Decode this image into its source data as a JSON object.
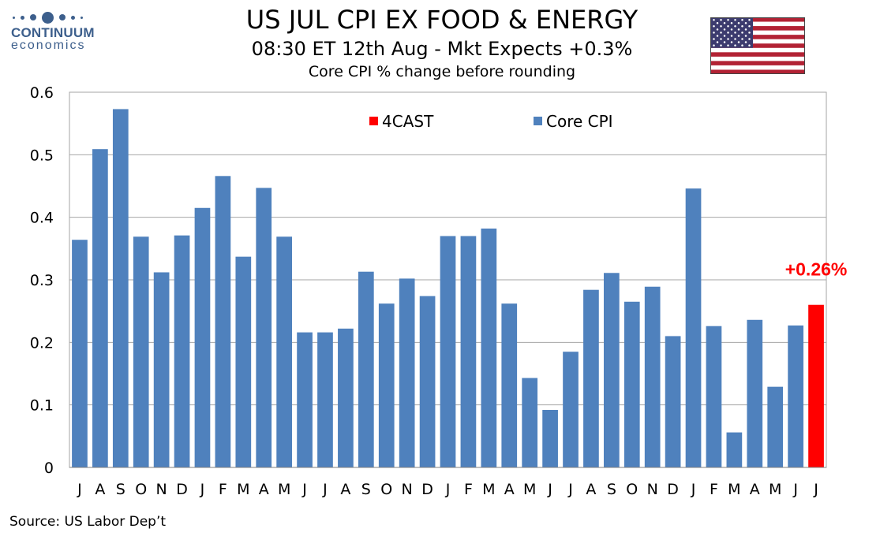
{
  "logo": {
    "name": "CONTINUUM",
    "sub": "economics"
  },
  "title": "US JUL CPI EX FOOD & ENERGY",
  "subtitle": "08:30 ET 12th Aug - Mkt Expects +0.3%",
  "note": "Core CPI % change before rounding",
  "source": "Source: US Labor Dep’t",
  "colors": {
    "core": "#4f81bd",
    "forecast": "#ff0000",
    "grid": "#a6a6a6",
    "logo": "#3d5f8c"
  },
  "chart_data": {
    "type": "bar",
    "title": "US JUL CPI EX FOOD & ENERGY",
    "xlabel": "",
    "ylabel": "",
    "ylim": [
      0,
      0.6
    ],
    "yticks": [
      0,
      0.1,
      0.2,
      0.3,
      0.4,
      0.5,
      0.6
    ],
    "ytick_labels": [
      "0",
      "0.1",
      "0.2",
      "0.3",
      "0.4",
      "0.5",
      "0.6"
    ],
    "categories": [
      "J",
      "A",
      "S",
      "O",
      "N",
      "D",
      "J",
      "F",
      "M",
      "A",
      "M",
      "J",
      "J",
      "A",
      "S",
      "O",
      "N",
      "D",
      "J",
      "F",
      "M",
      "A",
      "M",
      "J",
      "J",
      "A",
      "S",
      "O",
      "N",
      "D",
      "J",
      "F",
      "M",
      "A",
      "M",
      "J",
      "J"
    ],
    "series": [
      {
        "name": "Core CPI",
        "values": [
          0.364,
          0.509,
          0.573,
          0.369,
          0.312,
          0.371,
          0.415,
          0.466,
          0.337,
          0.447,
          0.369,
          0.216,
          0.216,
          0.222,
          0.313,
          0.262,
          0.302,
          0.274,
          0.37,
          0.37,
          0.382,
          0.262,
          0.143,
          0.092,
          0.185,
          0.284,
          0.311,
          0.265,
          0.289,
          0.21,
          0.446,
          0.226,
          0.056,
          0.236,
          0.129,
          0.227,
          null
        ]
      },
      {
        "name": "4CAST",
        "values": [
          null,
          null,
          null,
          null,
          null,
          null,
          null,
          null,
          null,
          null,
          null,
          null,
          null,
          null,
          null,
          null,
          null,
          null,
          null,
          null,
          null,
          null,
          null,
          null,
          null,
          null,
          null,
          null,
          null,
          null,
          null,
          null,
          null,
          null,
          null,
          null,
          0.26
        ]
      }
    ],
    "legend": [
      "4CAST",
      "Core CPI"
    ],
    "legend_position": "top-center",
    "annotation": "+0.26%",
    "grid": true
  }
}
